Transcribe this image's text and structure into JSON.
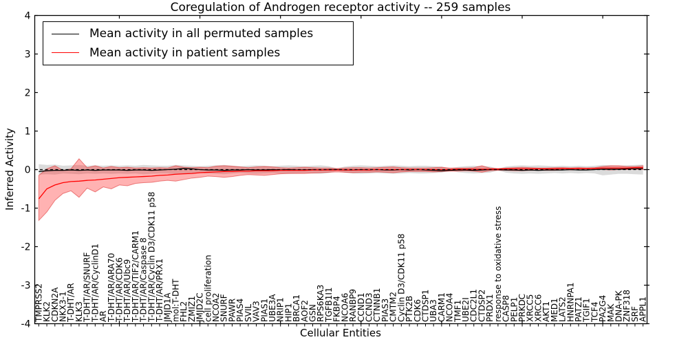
{
  "chart_data": {
    "type": "line",
    "title": "Coregulation of Androgen receptor activity -- 259 samples",
    "xlabel": "Cellular Entities",
    "ylabel": "Inferred Activity",
    "ylim": [
      -4,
      4
    ],
    "ytick_values": [
      4,
      3,
      2,
      1,
      0,
      -1,
      -2,
      -3,
      -4
    ],
    "ytick_labels": [
      "4",
      "3",
      "2",
      "1",
      "0",
      "-1",
      "-2",
      "-3",
      "-4"
    ],
    "xtick_major_indices": [
      10,
      20,
      30,
      40,
      50,
      60,
      70
    ],
    "grid": false,
    "legend_position": "upper left",
    "zero_line": {
      "style": "dashed",
      "color": "#000000",
      "y": 0
    },
    "categories": [
      "TMPRSS2",
      "KLK2",
      "CDKN2A",
      "NKX3-1",
      "T-DHT/AR",
      "KLK3",
      "T-DHT/AR/SNURF",
      "T-DHT/AR/CyclinD1",
      "AR",
      "T-DHT/AR/ARA70",
      "T-DHT/AR/CDK6",
      "T-DHT/AR/Ubc9",
      "T-DHT/AR/TIF2/CARM1",
      "T-DHT/AR/Caspase 8",
      "T-DHT/AR/Cyclin D3/CDK11 p58",
      "T-DHT/AR/PRX1",
      "JMJD1A",
      "mol:T-DHT",
      "FHL2",
      "ZMIZ1",
      "JMJD2C",
      "cell proliferation",
      "NCOA2",
      "SNURF",
      "PAWR",
      "PIAS4",
      "SVIL",
      "VAV3",
      "PIAS1",
      "UBE3A",
      "NRIP1",
      "HIP1",
      "BRCA1",
      "AOF2",
      "GSN",
      "RPS6KA3",
      "TGFB1I1",
      "FKBP4",
      "NCOA6",
      "RANBP9",
      "CCND1",
      "CCND3",
      "CTNNB1",
      "PIAS3",
      "CMTM2",
      "Cyclin D3/CDK11 p58",
      "PTK2B",
      "CDK6",
      "CTDSP1",
      "UBA3",
      "CARM1",
      "NCOA4",
      "TMF1",
      "UBE2I",
      "CDC2L1",
      "CTDSP2",
      "PRDX1",
      "response to oxidative stress",
      "CASP8",
      "PELP1",
      "PRKDC",
      "XRCC5",
      "XRCC6",
      "AKT1",
      "MED1",
      "LATS2",
      "HNRNPA1",
      "PATZ1",
      "TGIF1",
      "TCF4",
      "PA2G4",
      "MAK",
      "DNA-PK",
      "ZNF318",
      "SRF",
      "APPL1"
    ],
    "series": [
      {
        "name": "Mean activity in all permuted samples",
        "color": "#000000",
        "values": [
          -0.05,
          -0.03,
          -0.02,
          -0.02,
          -0.01,
          -0.02,
          -0.01,
          -0.02,
          -0.01,
          -0.01,
          -0.01,
          -0.02,
          -0.01,
          -0.01,
          -0.02,
          -0.01,
          0.0,
          0.01,
          0.03,
          0.02,
          0.0,
          -0.01,
          -0.01,
          -0.02,
          -0.01,
          -0.01,
          0.0,
          -0.01,
          -0.01,
          0.0,
          -0.01,
          0.0,
          -0.01,
          -0.01,
          0.0,
          -0.01,
          0.0,
          0.0,
          -0.01,
          -0.01,
          0.0,
          -0.01,
          0.0,
          -0.01,
          -0.01,
          0.0,
          -0.01,
          0.0,
          -0.01,
          -0.02,
          -0.03,
          -0.02,
          -0.01,
          -0.01,
          -0.02,
          -0.01,
          0.0,
          0.0,
          -0.01,
          -0.01,
          -0.02,
          -0.01,
          -0.02,
          -0.01,
          -0.01,
          -0.01,
          0.0,
          -0.01,
          -0.01,
          0.0,
          0.01,
          0.01,
          0.01,
          0.02,
          0.02,
          0.03
        ],
        "band": {
          "color": "rgba(110,110,110,0.25)",
          "upper": [
            0.14,
            0.12,
            0.13,
            0.1,
            0.11,
            0.12,
            0.1,
            0.11,
            0.1,
            0.11,
            0.1,
            0.11,
            0.1,
            0.12,
            0.11,
            0.1,
            0.1,
            0.12,
            0.11,
            0.1,
            0.09,
            0.1,
            0.11,
            0.12,
            0.1,
            0.09,
            0.1,
            0.11,
            0.1,
            0.09,
            0.1,
            0.11,
            0.1,
            0.09,
            0.1,
            0.11,
            0.09,
            0.03,
            0.08,
            0.1,
            0.11,
            0.1,
            0.09,
            0.1,
            0.11,
            0.1,
            0.09,
            0.1,
            0.1,
            0.09,
            0.08,
            0.03,
            0.07,
            0.09,
            0.1,
            0.09,
            0.08,
            0.02,
            0.08,
            0.1,
            0.11,
            0.1,
            0.11,
            0.1,
            0.09,
            0.1,
            0.09,
            0.1,
            0.09,
            0.1,
            0.12,
            0.11,
            0.1,
            0.11,
            0.12,
            0.13
          ],
          "lower": [
            -0.13,
            -0.12,
            -0.13,
            -0.1,
            -0.11,
            -0.12,
            -0.1,
            -0.11,
            -0.1,
            -0.11,
            -0.1,
            -0.11,
            -0.1,
            -0.12,
            -0.11,
            -0.1,
            -0.1,
            -0.12,
            -0.11,
            -0.1,
            -0.09,
            -0.1,
            -0.11,
            -0.12,
            -0.1,
            -0.09,
            -0.1,
            -0.11,
            -0.1,
            -0.09,
            -0.1,
            -0.11,
            -0.1,
            -0.09,
            -0.1,
            -0.11,
            -0.09,
            -0.03,
            -0.08,
            -0.1,
            -0.11,
            -0.1,
            -0.09,
            -0.1,
            -0.11,
            -0.1,
            -0.09,
            -0.1,
            -0.1,
            -0.09,
            -0.08,
            -0.03,
            -0.07,
            -0.09,
            -0.1,
            -0.09,
            -0.08,
            -0.02,
            -0.08,
            -0.1,
            -0.11,
            -0.1,
            -0.11,
            -0.1,
            -0.09,
            -0.1,
            -0.09,
            -0.1,
            -0.09,
            -0.1,
            -0.15,
            -0.13,
            -0.11,
            -0.11,
            -0.12,
            -0.13
          ]
        }
      },
      {
        "name": "Mean activity in patient samples",
        "color": "#ff0000",
        "values": [
          -0.76,
          -0.5,
          -0.4,
          -0.34,
          -0.31,
          -0.3,
          -0.28,
          -0.27,
          -0.25,
          -0.23,
          -0.21,
          -0.2,
          -0.19,
          -0.18,
          -0.17,
          -0.15,
          -0.14,
          -0.12,
          -0.11,
          -0.1,
          -0.08,
          -0.07,
          -0.06,
          -0.05,
          -0.05,
          -0.04,
          -0.04,
          -0.03,
          -0.03,
          -0.03,
          -0.02,
          -0.02,
          -0.02,
          -0.02,
          -0.01,
          -0.01,
          -0.01,
          -0.01,
          -0.01,
          -0.01,
          -0.01,
          -0.01,
          0.0,
          0.0,
          0.0,
          0.0,
          0.0,
          0.0,
          0.0,
          0.0,
          0.0,
          0.0,
          0.01,
          0.01,
          0.01,
          0.01,
          0.01,
          0.01,
          0.02,
          0.02,
          0.02,
          0.02,
          0.02,
          0.02,
          0.02,
          0.03,
          0.03,
          0.03,
          0.03,
          0.03,
          0.04,
          0.04,
          0.04,
          0.04,
          0.05,
          0.05
        ],
        "band": {
          "color": "rgba(255,0,0,0.30)",
          "edge": "rgba(220,40,40,0.55)",
          "upper": [
            -0.15,
            0.02,
            0.1,
            -0.02,
            0.02,
            0.28,
            0.05,
            0.1,
            0.04,
            0.08,
            0.05,
            0.06,
            0.04,
            0.05,
            0.04,
            0.05,
            0.04,
            0.1,
            0.06,
            0.05,
            0.06,
            0.05,
            0.09,
            0.1,
            0.09,
            0.07,
            0.05,
            0.07,
            0.08,
            0.07,
            0.05,
            0.04,
            0.05,
            0.06,
            0.05,
            0.04,
            0.04,
            0.03,
            0.04,
            0.05,
            0.05,
            0.04,
            0.05,
            0.06,
            0.07,
            0.05,
            0.04,
            0.04,
            0.04,
            0.05,
            0.06,
            0.04,
            0.04,
            0.04,
            0.05,
            0.1,
            0.04,
            0.03,
            0.04,
            0.05,
            0.06,
            0.05,
            0.04,
            0.04,
            0.05,
            0.05,
            0.04,
            0.05,
            0.04,
            0.05,
            0.08,
            0.1,
            0.1,
            0.08,
            0.08,
            0.1
          ],
          "lower": [
            -1.32,
            -1.1,
            -0.8,
            -0.62,
            -0.55,
            -0.72,
            -0.48,
            -0.58,
            -0.45,
            -0.5,
            -0.4,
            -0.42,
            -0.36,
            -0.34,
            -0.33,
            -0.3,
            -0.28,
            -0.3,
            -0.26,
            -0.22,
            -0.2,
            -0.17,
            -0.18,
            -0.2,
            -0.18,
            -0.15,
            -0.13,
            -0.14,
            -0.15,
            -0.13,
            -0.11,
            -0.1,
            -0.1,
            -0.1,
            -0.09,
            -0.08,
            -0.07,
            -0.06,
            -0.07,
            -0.08,
            -0.07,
            -0.07,
            -0.06,
            -0.07,
            -0.08,
            -0.06,
            -0.05,
            -0.05,
            -0.05,
            -0.06,
            -0.05,
            -0.04,
            -0.04,
            -0.03,
            -0.04,
            -0.07,
            -0.03,
            -0.02,
            -0.02,
            -0.03,
            -0.03,
            -0.02,
            -0.02,
            -0.02,
            -0.02,
            -0.01,
            -0.01,
            -0.01,
            -0.01,
            0.0,
            0.0,
            -0.01,
            0.0,
            0.0,
            0.01,
            0.0
          ]
        }
      }
    ]
  }
}
